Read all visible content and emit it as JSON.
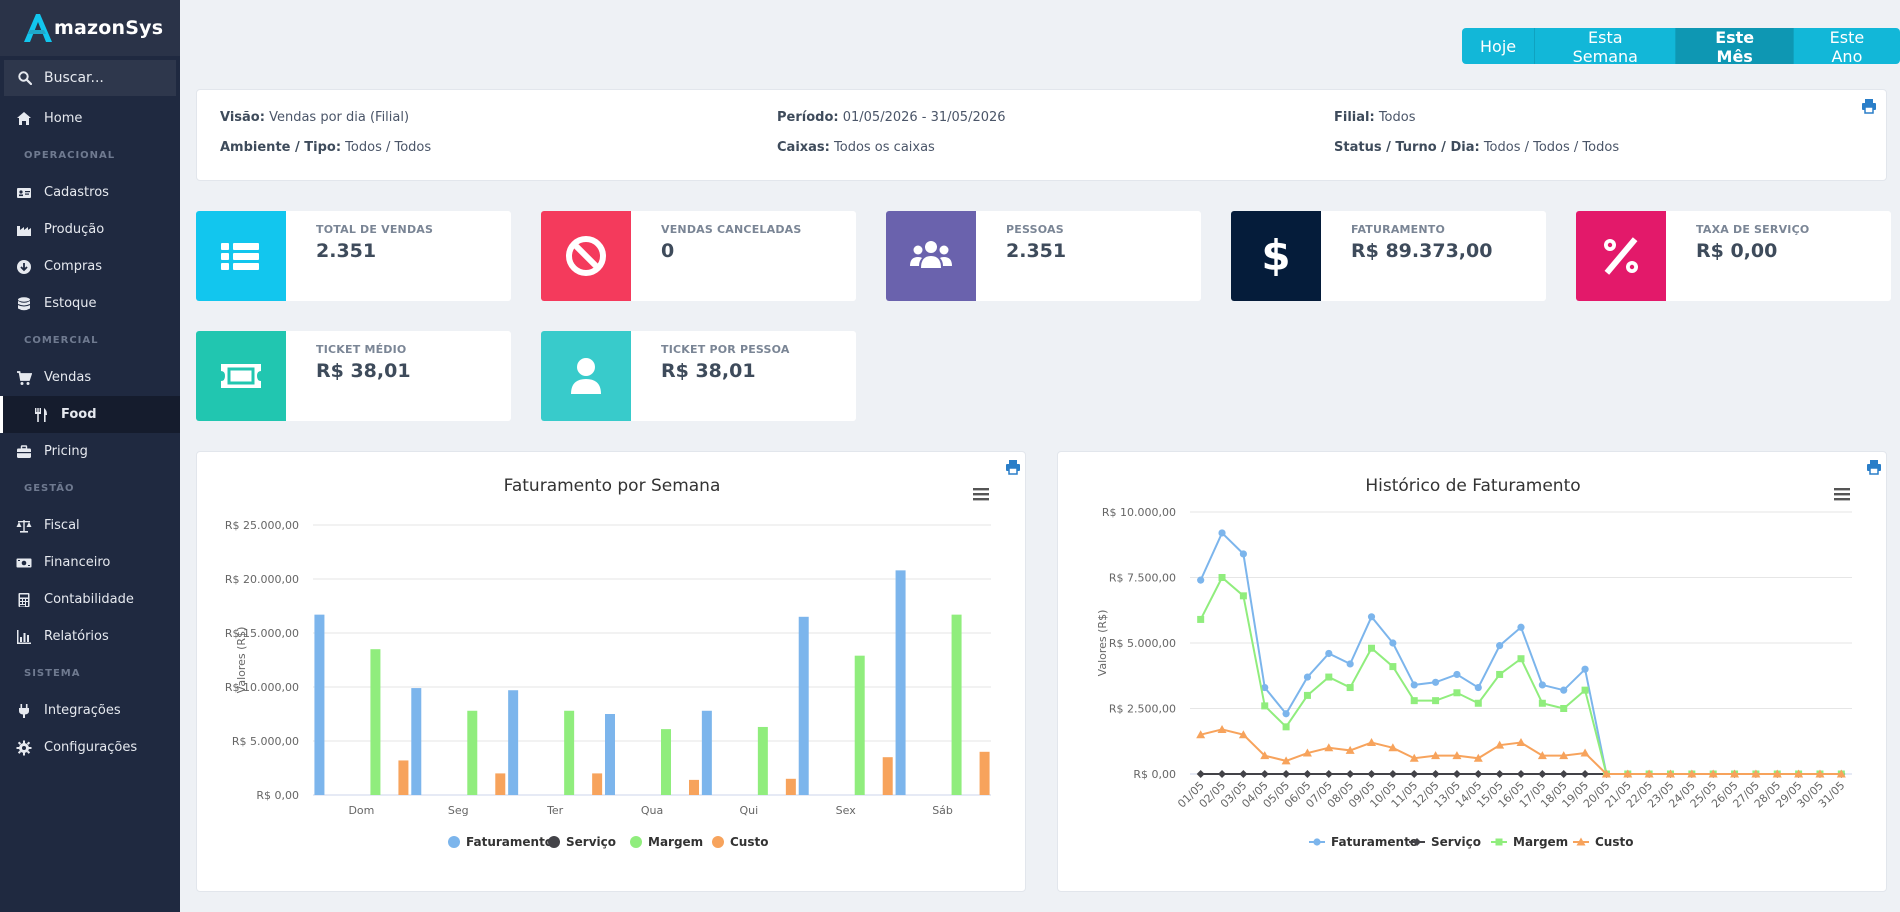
{
  "brand": {
    "name": "mazonSys"
  },
  "search": {
    "placeholder": "Buscar..."
  },
  "sidebar": {
    "items": [
      {
        "type": "item",
        "label": "Home",
        "icon": "home-icon"
      },
      {
        "type": "section",
        "label": "OPERACIONAL"
      },
      {
        "type": "item",
        "label": "Cadastros",
        "icon": "id-card-icon"
      },
      {
        "type": "item",
        "label": "Produção",
        "icon": "factory-icon"
      },
      {
        "type": "item",
        "label": "Compras",
        "icon": "download-circle-icon"
      },
      {
        "type": "item",
        "label": "Estoque",
        "icon": "database-icon"
      },
      {
        "type": "section",
        "label": "COMERCIAL"
      },
      {
        "type": "item",
        "label": "Vendas",
        "icon": "cart-icon"
      },
      {
        "type": "item",
        "label": "Food",
        "icon": "utensils-icon",
        "active": true
      },
      {
        "type": "item",
        "label": "Pricing",
        "icon": "briefcase-icon"
      },
      {
        "type": "section",
        "label": "GESTÃO"
      },
      {
        "type": "item",
        "label": "Fiscal",
        "icon": "balance-scale-icon"
      },
      {
        "type": "item",
        "label": "Financeiro",
        "icon": "money-bill-icon"
      },
      {
        "type": "item",
        "label": "Contabilidade",
        "icon": "calculator-icon"
      },
      {
        "type": "item",
        "label": "Relatórios",
        "icon": "bar-chart-icon"
      },
      {
        "type": "section",
        "label": "SISTEMA"
      },
      {
        "type": "item",
        "label": "Integrações",
        "icon": "plug-icon"
      },
      {
        "type": "item",
        "label": "Configurações",
        "icon": "gear-icon"
      }
    ]
  },
  "period": {
    "buttons": [
      "Hoje",
      "Esta Semana",
      "Este Mês",
      "Este Ano"
    ],
    "active": "Este Mês"
  },
  "filters": {
    "visao_label": "Visão:",
    "visao": "Vendas por dia (Filial)",
    "periodo_label": "Período:",
    "periodo": "01/05/2026 - 31/05/2026",
    "filial_label": "Filial:",
    "filial": "Todos",
    "ambiente_label": "Ambiente / Tipo:",
    "ambiente": "Todos / Todos",
    "caixas_label": "Caixas:",
    "caixas": "Todos os caixas",
    "status_label": "Status / Turno / Dia:",
    "status": "Todos / Todos / Todos"
  },
  "stats": [
    {
      "label": "TOTAL DE VENDAS",
      "value": "2.351",
      "color": "#12c6ee",
      "icon": "list-icon"
    },
    {
      "label": "VENDAS CANCELADAS",
      "value": "0",
      "color": "#f43a5c",
      "icon": "ban-icon"
    },
    {
      "label": "PESSOAS",
      "value": "2.351",
      "color": "#6a62ad",
      "icon": "users-icon"
    },
    {
      "label": "FATURAMENTO",
      "value": "R$ 89.373,00",
      "color": "#051c3a",
      "icon": "dollar-icon"
    },
    {
      "label": "TAXA DE SERVIÇO",
      "value": "R$ 0,00",
      "color": "#e3196a",
      "icon": "percent-icon"
    },
    {
      "label": "TICKET MÉDIO",
      "value": "R$ 38,01",
      "color": "#21c6b0",
      "icon": "ticket-icon"
    },
    {
      "label": "TICKET POR PESSOA",
      "value": "R$ 38,01",
      "color": "#38cbcb",
      "icon": "user-icon"
    }
  ],
  "series_colors": {
    "Faturamento": "#7cb5ec",
    "Serviço": "#434348",
    "Margem": "#90ed7d",
    "Custo": "#f7a35c"
  },
  "chart_data": [
    {
      "type": "bar",
      "title": "Faturamento por Semana",
      "ylabel": "Valores (R$)",
      "xlabel": "",
      "categories": [
        "Dom",
        "Seg",
        "Ter",
        "Qua",
        "Qui",
        "Sex",
        "Sáb"
      ],
      "ylim": [
        0,
        25000
      ],
      "yticks": [
        "R$ 0,00",
        "R$ 5.000,00",
        "R$ 10.000,00",
        "R$ 15.000,00",
        "R$ 20.000,00",
        "R$ 25.000,00"
      ],
      "series": [
        {
          "name": "Faturamento",
          "values": [
            16700,
            9900,
            9700,
            7500,
            7800,
            16500,
            20800
          ]
        },
        {
          "name": "Serviço",
          "values": [
            0,
            0,
            0,
            0,
            0,
            0,
            0
          ]
        },
        {
          "name": "Margem",
          "values": [
            13500,
            7800,
            7800,
            6100,
            6300,
            12900,
            16700
          ]
        },
        {
          "name": "Custo",
          "values": [
            3200,
            2000,
            2000,
            1400,
            1500,
            3500,
            4000
          ]
        }
      ],
      "legend": "bottom-center",
      "grid": true
    },
    {
      "type": "line",
      "title": "Histórico de Faturamento",
      "ylabel": "Valores (R$)",
      "xlabel": "",
      "categories": [
        "01/05",
        "02/05",
        "03/05",
        "04/05",
        "05/05",
        "06/05",
        "07/05",
        "08/05",
        "09/05",
        "10/05",
        "11/05",
        "12/05",
        "13/05",
        "14/05",
        "15/05",
        "16/05",
        "17/05",
        "18/05",
        "19/05",
        "20/05",
        "21/05",
        "22/05",
        "23/05",
        "24/05",
        "25/05",
        "26/05",
        "27/05",
        "28/05",
        "29/05",
        "30/05",
        "31/05"
      ],
      "ylim": [
        0,
        10000
      ],
      "yticks": [
        "R$ 0,00",
        "R$ 2.500,00",
        "R$ 5.000,00",
        "R$ 7.500,00",
        "R$ 10.000,00"
      ],
      "series": [
        {
          "name": "Faturamento",
          "values": [
            7400,
            9200,
            8400,
            3300,
            2300,
            3700,
            4600,
            4200,
            6000,
            5000,
            3400,
            3500,
            3800,
            3300,
            4900,
            5600,
            3400,
            3200,
            4000,
            0,
            0,
            0,
            0,
            0,
            0,
            0,
            0,
            0,
            0,
            0,
            0
          ]
        },
        {
          "name": "Serviço",
          "values": [
            0,
            0,
            0,
            0,
            0,
            0,
            0,
            0,
            0,
            0,
            0,
            0,
            0,
            0,
            0,
            0,
            0,
            0,
            0,
            0,
            0,
            0,
            0,
            0,
            0,
            0,
            0,
            0,
            0,
            0,
            0
          ]
        },
        {
          "name": "Margem",
          "values": [
            5900,
            7500,
            6800,
            2600,
            1800,
            3000,
            3700,
            3300,
            4800,
            4100,
            2800,
            2800,
            3100,
            2700,
            3800,
            4400,
            2700,
            2500,
            3200,
            0,
            0,
            0,
            0,
            0,
            0,
            0,
            0,
            0,
            0,
            0,
            0
          ]
        },
        {
          "name": "Custo",
          "values": [
            1500,
            1700,
            1500,
            700,
            500,
            800,
            1000,
            900,
            1200,
            1000,
            600,
            700,
            700,
            600,
            1100,
            1200,
            700,
            700,
            800,
            0,
            0,
            0,
            0,
            0,
            0,
            0,
            0,
            0,
            0,
            0,
            0
          ]
        }
      ],
      "legend": "bottom-center",
      "grid": true
    }
  ]
}
